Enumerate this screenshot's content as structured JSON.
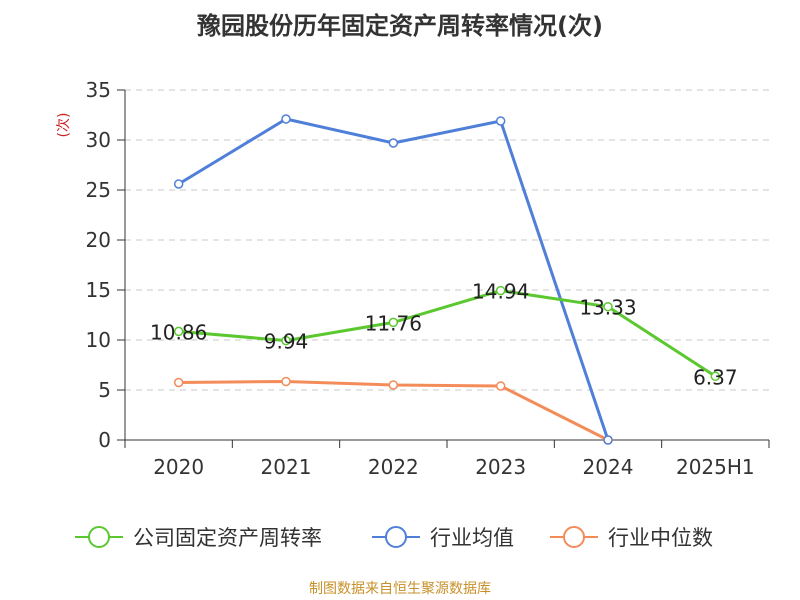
{
  "chart_data": {
    "type": "line",
    "title": "豫园股份历年固定资产周转率情况(次)",
    "ylabel": "(次)",
    "xlabel": "",
    "categories": [
      "2020",
      "2021",
      "2022",
      "2023",
      "2024",
      "2025H1"
    ],
    "ylim": [
      0,
      35
    ],
    "yticks": [
      0,
      5,
      10,
      15,
      20,
      25,
      30,
      35
    ],
    "grid": true,
    "legend_position": "bottom",
    "series": [
      {
        "name": "公司固定资产周转率",
        "color": "#5cc830",
        "values": [
          10.86,
          9.94,
          11.76,
          14.94,
          13.33,
          6.37
        ],
        "labels": [
          "10.86",
          "9.94",
          "11.76",
          "14.94",
          "13.33",
          "6.37"
        ],
        "show_labels": true
      },
      {
        "name": "行业均值",
        "color": "#4f7fd8",
        "values": [
          25.6,
          32.1,
          29.7,
          31.9,
          0.0,
          null
        ],
        "show_labels": false
      },
      {
        "name": "行业中位数",
        "color": "#f48c5a",
        "values": [
          5.75,
          5.85,
          5.5,
          5.4,
          0.0,
          null
        ],
        "show_labels": false
      }
    ]
  },
  "source": "制图数据来自恒生聚源数据库"
}
